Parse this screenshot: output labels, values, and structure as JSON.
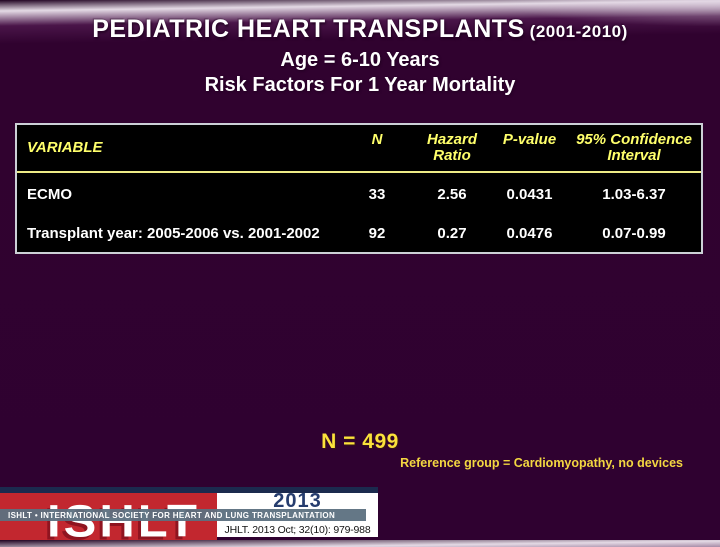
{
  "slide": {
    "title_main": "PEDIATRIC HEART TRANSPLANTS",
    "title_years": "(2001-2010)",
    "subtitle1": "Age = 6-10 Years",
    "subtitle2": "Risk Factors For 1 Year Mortality"
  },
  "table": {
    "columns": [
      "VARIABLE",
      "N",
      "Hazard Ratio",
      "P-value",
      "95% Confidence Interval"
    ],
    "rows": [
      {
        "variable": "ECMO",
        "n": "33",
        "hazard_ratio": "2.56",
        "p_value": "0.0431",
        "ci": "1.03-6.37"
      },
      {
        "variable": "Transplant year: 2005-2006 vs. 2001-2002",
        "n": "92",
        "hazard_ratio": "0.27",
        "p_value": "0.0476",
        "ci": "0.07-0.99"
      }
    ]
  },
  "notes": {
    "n_total": "N = 499",
    "reference": "Reference group = Cardiomyopathy, no devices"
  },
  "footer": {
    "logo_text": "ISHLT",
    "stripe_text": "ISHLT • INTERNATIONAL SOCIETY FOR HEART AND LUNG TRANSPLANTATION",
    "year": "2013",
    "citation": "JHLT. 2013 Oct; 32(10): 979-988"
  },
  "colors": {
    "background_purple": "#2f0130",
    "gradient_light_band": "#e4dae5",
    "table_background": "#000000",
    "table_border": "#ccd0d6",
    "header_yellow": "#ffff6b",
    "divider_yellow": "#eeeb86",
    "data_text": "#ffffff",
    "n_total_yellow": "#fbe23b",
    "reference_yellow": "#f3d741",
    "banner_red": "#c2272f",
    "banner_navy": "#1b2a4e",
    "stripe_gray": "#5c7080",
    "year_navy": "#253c6e"
  }
}
